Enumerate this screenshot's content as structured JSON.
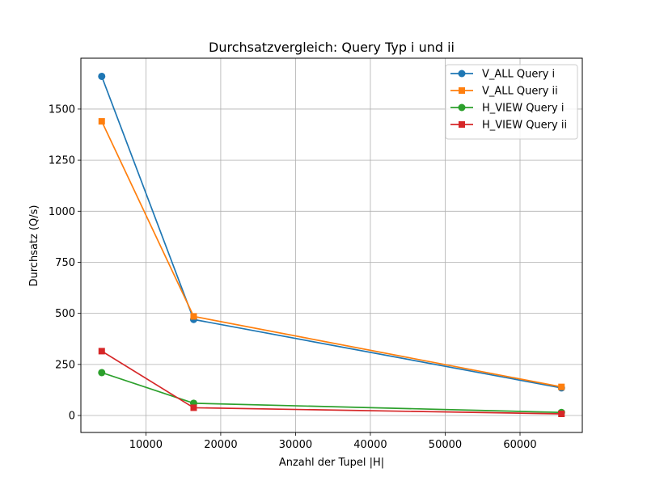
{
  "chart_data": {
    "type": "line",
    "title": "Durchsatzvergleich: Query Typ i und ii",
    "xlabel": "Anzahl der Tupel |H|",
    "ylabel": "Durchsatz (Q/s)",
    "x": [
      4096,
      16384,
      65536
    ],
    "xlim": [
      1310,
      68322
    ],
    "ylim": [
      -83,
      1749
    ],
    "xticks": [
      10000,
      20000,
      30000,
      40000,
      50000,
      60000
    ],
    "yticks": [
      0,
      250,
      500,
      750,
      1000,
      1250,
      1500
    ],
    "grid": true,
    "legend_position": "top-right",
    "series": [
      {
        "name": "V_ALL Query i",
        "values": [
          1660,
          470,
          135
        ],
        "color": "#1f77b4",
        "marker": "circle"
      },
      {
        "name": "V_ALL Query ii",
        "values": [
          1440,
          485,
          140
        ],
        "color": "#ff7f0e",
        "marker": "square"
      },
      {
        "name": "H_VIEW Query i",
        "values": [
          210,
          60,
          15
        ],
        "color": "#2ca02c",
        "marker": "circle"
      },
      {
        "name": "H_VIEW Query ii",
        "values": [
          315,
          38,
          8
        ],
        "color": "#d62728",
        "marker": "square"
      }
    ]
  }
}
